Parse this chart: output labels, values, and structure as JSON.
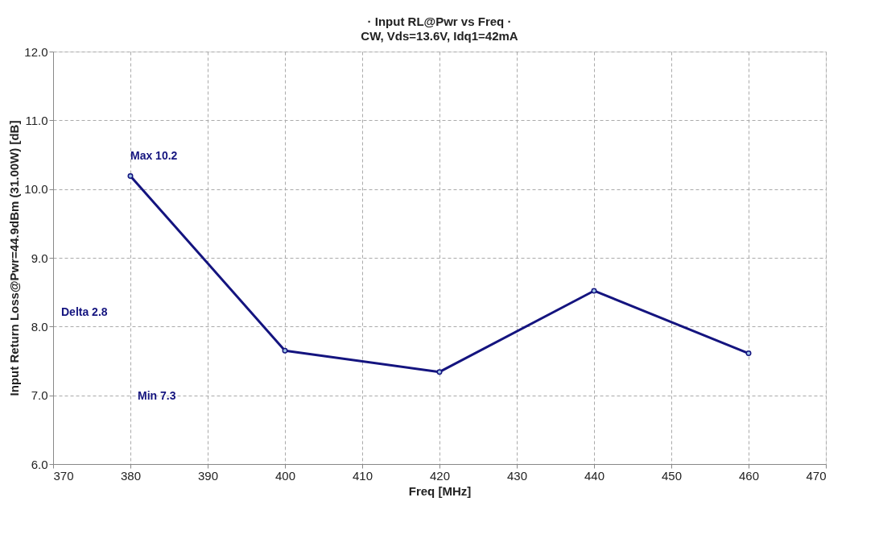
{
  "chart_data": {
    "type": "line",
    "title": "· Input RL@Pwr vs Freq ·",
    "subtitle": "CW, Vds=13.6V, Idq1=42mA",
    "xlabel": "Freq  [MHz]",
    "ylabel": "Input Return Loss@Pwr=44.9dBm (31.00W) [dB]",
    "x": [
      380,
      400,
      420,
      440,
      460
    ],
    "series": [
      {
        "color": "#14147f",
        "values": [
          10.19,
          7.65,
          7.34,
          8.52,
          7.61
        ]
      }
    ],
    "xlim": [
      370,
      470
    ],
    "xticks": [
      370,
      380,
      390,
      400,
      410,
      420,
      430,
      440,
      450,
      460,
      470
    ],
    "ylim": [
      6,
      12
    ],
    "yticks": [
      {
        "value": 6,
        "label": "6.0"
      },
      {
        "value": 7,
        "label": "7.0"
      },
      {
        "value": 8,
        "label": "8.0"
      },
      {
        "value": 9,
        "label": "9.0"
      },
      {
        "value": 10,
        "label": "10.0"
      },
      {
        "value": 11,
        "label": "11.0"
      },
      {
        "value": 12,
        "label": "12.0"
      }
    ],
    "grid": true,
    "marker": "circle",
    "line_style": "solid",
    "annotations": [
      {
        "text": "Max 10.2",
        "x": 380,
        "y": 10.19
      },
      "Delta 2.8",
      "Min 7.3"
    ]
  }
}
